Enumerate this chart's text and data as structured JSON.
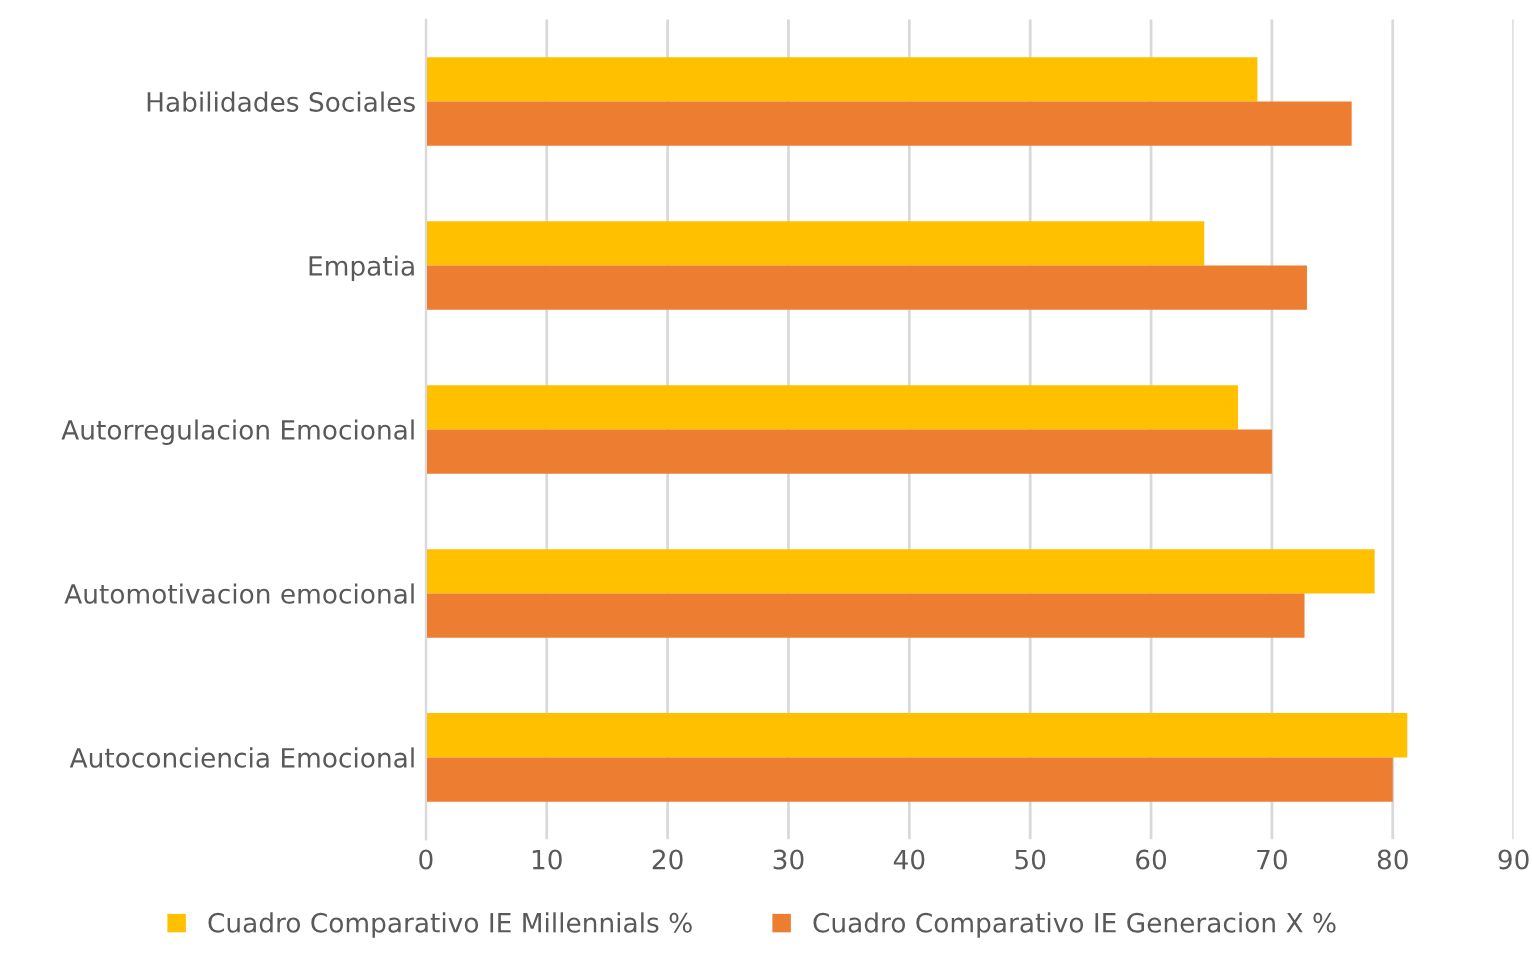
{
  "chart_data": {
    "type": "bar",
    "orientation": "horizontal",
    "categories": [
      "Habilidades Sociales",
      "Empatia",
      "Autorregulacion Emocional",
      "Automotivacion emocional",
      "Autoconciencia Emocional"
    ],
    "series": [
      {
        "name": "Cuadro Comparativo IE Millennials %",
        "color": "#ffc000",
        "values": [
          68.8,
          64.4,
          67.2,
          78.5,
          81.2
        ]
      },
      {
        "name": "Cuadro Comparativo IE Generacion X %",
        "color": "#ed7d31",
        "values": [
          76.6,
          72.9,
          70.0,
          72.7,
          80.0
        ]
      }
    ],
    "xlim": [
      0,
      90
    ],
    "xticks": [
      0,
      10,
      20,
      30,
      40,
      50,
      60,
      70,
      80,
      90
    ],
    "grid": "x",
    "legend": "bottom"
  }
}
